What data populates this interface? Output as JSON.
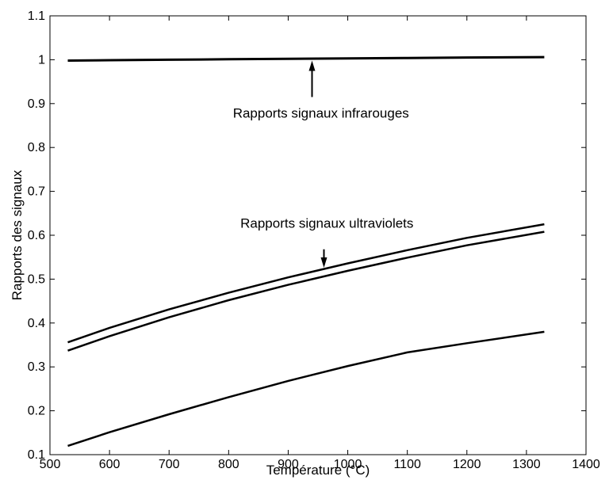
{
  "chart_data": {
    "type": "line",
    "xlabel": "Température (°C)",
    "ylabel": "Rapports des signaux",
    "xlim": [
      500,
      1400
    ],
    "ylim": [
      0.1,
      1.1
    ],
    "xticks": [
      "500",
      "600",
      "700",
      "800",
      "900",
      "1000",
      "1100",
      "1200",
      "1300",
      "1400"
    ],
    "yticks": [
      "0.1",
      "0.2",
      "0.3",
      "0.4",
      "0.5",
      "0.6",
      "0.7",
      "0.8",
      "0.9",
      "1",
      "1.1"
    ],
    "grid": false,
    "x": [
      530,
      600,
      700,
      800,
      900,
      1000,
      1100,
      1200,
      1330
    ],
    "series": [
      {
        "values": [
          0.998,
          0.999,
          1.0,
          1.001,
          1.002,
          1.003,
          1.004,
          1.005,
          1.006
        ],
        "width": 3
      },
      {
        "values": [
          0.356,
          0.389,
          0.431,
          0.469,
          0.504,
          0.536,
          0.566,
          0.594,
          0.625
        ],
        "width": 2.5
      },
      {
        "values": [
          0.337,
          0.37,
          0.413,
          0.452,
          0.487,
          0.519,
          0.549,
          0.577,
          0.608
        ],
        "width": 2.5
      },
      {
        "values": [
          0.12,
          0.151,
          0.192,
          0.231,
          0.268,
          0.302,
          0.333,
          0.354,
          0.38
        ],
        "width": 2.5
      }
    ],
    "annotations": [
      {
        "text": "Rapports signaux infrarouges",
        "arrow_x": 940,
        "arrow_from_y": 0.915,
        "arrow_to_y": 0.998,
        "text_x": 955,
        "text_y": 0.868
      },
      {
        "text": "Rapports signaux ultraviolets",
        "arrow_x": 960,
        "arrow_from_y": 0.568,
        "arrow_to_y": 0.526,
        "text_x": 965,
        "text_y": 0.617
      }
    ]
  }
}
